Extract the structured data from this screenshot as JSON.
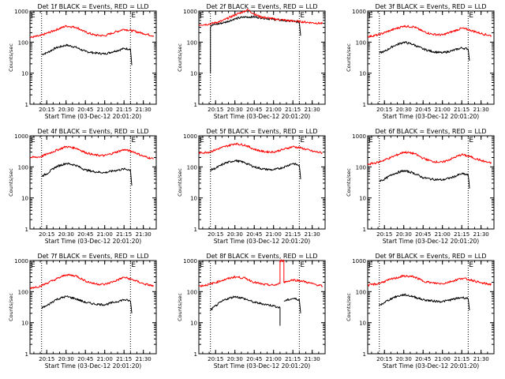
{
  "colors": {
    "events": "#000000",
    "lld": "#ff0000",
    "axis": "#000000",
    "background": "#ffffff"
  },
  "chart_data": [
    {
      "type": "line",
      "title": "Det 1f BLACK = Events, RED = LLD",
      "xlabel": "Start Time (03-Dec-12 20:01:20)",
      "ylabel": "Counts/sec",
      "yscale": "log",
      "ylim": [
        1,
        1000
      ],
      "xlim": [
        "20:02",
        "21:40"
      ],
      "xticks": [
        "20:15",
        "20:30",
        "20:45",
        "21:00",
        "21:15",
        "21:30"
      ],
      "yticks": [
        "1",
        "10",
        "100",
        "1000"
      ],
      "markers": [
        {
          "time": "20:11",
          "label": ""
        },
        {
          "time": "21:20",
          "label": "E"
        }
      ],
      "series": [
        {
          "name": "Events",
          "color": "#000000",
          "x": [
            "20:11",
            "20:15",
            "20:22",
            "20:30",
            "20:37",
            "20:45",
            "20:52",
            "21:00",
            "21:07",
            "21:15",
            "21:20",
            "21:21"
          ],
          "y": [
            40,
            45,
            65,
            80,
            70,
            50,
            45,
            42,
            50,
            62,
            60,
            18
          ]
        },
        {
          "name": "LLD",
          "color": "#ff0000",
          "x": [
            "20:02",
            "20:10",
            "20:20",
            "20:30",
            "20:38",
            "20:45",
            "20:52",
            "21:00",
            "21:08",
            "21:15",
            "21:22",
            "21:30",
            "21:38"
          ],
          "y": [
            140,
            160,
            230,
            330,
            300,
            210,
            170,
            160,
            210,
            260,
            230,
            190,
            160
          ]
        }
      ]
    },
    {
      "type": "line",
      "title": "Det 2f BLACK = Events, RED = LLD",
      "xlabel": "Start Time (03-Dec-12 20:01:20)",
      "ylabel": "Counts/sec",
      "yscale": "log",
      "ylim": [
        1,
        1000
      ],
      "xlim": [
        "20:02",
        "21:40"
      ],
      "xticks": [
        "20:15",
        "20:30",
        "20:45",
        "21:00",
        "21:15",
        "21:30"
      ],
      "yticks": [
        "1",
        "10",
        "100",
        "1000"
      ],
      "markers": [
        {
          "time": "20:11",
          "label": ""
        },
        {
          "time": "21:20",
          "label": "E"
        }
      ],
      "series": [
        {
          "name": "Events",
          "color": "#000000",
          "x": [
            "20:11",
            "20:11",
            "20:12",
            "20:15",
            "20:22",
            "20:30",
            "20:37",
            "20:45",
            "20:52",
            "21:00",
            "21:07",
            "21:15",
            "21:20",
            "21:21"
          ],
          "y": [
            10,
            300,
            350,
            370,
            430,
            560,
            640,
            650,
            600,
            540,
            500,
            470,
            440,
            160
          ]
        },
        {
          "name": "LLD",
          "color": "#ff0000",
          "x": [
            "20:02",
            "20:10",
            "20:20",
            "20:30",
            "20:35",
            "20:40",
            "20:45",
            "20:50",
            "21:00",
            "21:10",
            "21:20",
            "21:30",
            "21:38"
          ],
          "y": [
            360,
            380,
            480,
            750,
            900,
            1100,
            800,
            650,
            560,
            500,
            460,
            420,
            400
          ]
        }
      ]
    },
    {
      "type": "line",
      "title": "Det 3f BLACK = Events, RED = LLD",
      "xlabel": "Start Time (03-Dec-12 20:01:20)",
      "ylabel": "Counts/sec",
      "yscale": "log",
      "ylim": [
        1,
        1000
      ],
      "xlim": [
        "20:02",
        "21:40"
      ],
      "xticks": [
        "20:15",
        "20:30",
        "20:45",
        "21:00",
        "21:15",
        "21:30"
      ],
      "yticks": [
        "1",
        "10",
        "100",
        "1000"
      ],
      "markers": [
        {
          "time": "20:11",
          "label": ""
        },
        {
          "time": "21:20",
          "label": "E"
        }
      ],
      "series": [
        {
          "name": "Events",
          "color": "#000000",
          "x": [
            "20:11",
            "20:15",
            "20:22",
            "20:30",
            "20:37",
            "20:45",
            "20:52",
            "21:00",
            "21:07",
            "21:15",
            "21:20",
            "21:21"
          ],
          "y": [
            45,
            50,
            75,
            100,
            85,
            60,
            50,
            45,
            52,
            65,
            60,
            25
          ]
        },
        {
          "name": "LLD",
          "color": "#ff0000",
          "x": [
            "20:02",
            "20:10",
            "20:20",
            "20:30",
            "20:38",
            "20:45",
            "20:52",
            "21:00",
            "21:08",
            "21:15",
            "21:22",
            "21:30",
            "21:38"
          ],
          "y": [
            150,
            170,
            240,
            330,
            310,
            220,
            180,
            170,
            220,
            280,
            240,
            190,
            160
          ]
        }
      ]
    },
    {
      "type": "line",
      "title": "Det 4f BLACK = Events, RED = LLD",
      "xlabel": "Start Time (03-Dec-12 20:01:20)",
      "ylabel": "Counts/sec",
      "yscale": "log",
      "ylim": [
        1,
        1000
      ],
      "xlim": [
        "20:02",
        "21:40"
      ],
      "xticks": [
        "20:15",
        "20:30",
        "20:45",
        "21:00",
        "21:15",
        "21:30"
      ],
      "yticks": [
        "1",
        "10",
        "100",
        "1000"
      ],
      "markers": [
        {
          "time": "20:11",
          "label": ""
        },
        {
          "time": "21:20",
          "label": "E"
        }
      ],
      "series": [
        {
          "name": "Events",
          "color": "#000000",
          "x": [
            "20:11",
            "20:15",
            "20:22",
            "20:30",
            "20:37",
            "20:45",
            "20:52",
            "21:00",
            "21:07",
            "21:15",
            "21:20",
            "21:21"
          ],
          "y": [
            50,
            60,
            100,
            130,
            115,
            80,
            70,
            65,
            75,
            85,
            80,
            25
          ]
        },
        {
          "name": "LLD",
          "color": "#ff0000",
          "x": [
            "20:02",
            "20:10",
            "20:20",
            "20:30",
            "20:38",
            "20:45",
            "20:52",
            "21:00",
            "21:08",
            "21:15",
            "21:22",
            "21:30",
            "21:38"
          ],
          "y": [
            200,
            210,
            310,
            450,
            400,
            290,
            240,
            230,
            290,
            360,
            310,
            220,
            180
          ]
        }
      ]
    },
    {
      "type": "line",
      "title": "Det 5f BLACK = Events, RED = LLD",
      "xlabel": "Start Time (03-Dec-12 20:01:20)",
      "ylabel": "Counts/sec",
      "yscale": "log",
      "ylim": [
        1,
        1000
      ],
      "xlim": [
        "20:02",
        "21:40"
      ],
      "xticks": [
        "20:15",
        "20:30",
        "20:45",
        "21:00",
        "21:15",
        "21:30"
      ],
      "yticks": [
        "1",
        "10",
        "100",
        "1000"
      ],
      "markers": [
        {
          "time": "20:11",
          "label": ""
        },
        {
          "time": "21:20",
          "label": "E"
        }
      ],
      "series": [
        {
          "name": "Events",
          "color": "#000000",
          "x": [
            "20:11",
            "20:15",
            "20:22",
            "20:30",
            "20:37",
            "20:45",
            "20:52",
            "21:00",
            "21:07",
            "21:15",
            "21:20",
            "21:21"
          ],
          "y": [
            80,
            90,
            130,
            160,
            140,
            100,
            85,
            80,
            95,
            130,
            110,
            40
          ]
        },
        {
          "name": "LLD",
          "color": "#ff0000",
          "x": [
            "20:02",
            "20:10",
            "20:20",
            "20:30",
            "20:38",
            "20:45",
            "20:52",
            "21:00",
            "21:08",
            "21:15",
            "21:22",
            "21:30",
            "21:38"
          ],
          "y": [
            280,
            300,
            420,
            560,
            500,
            370,
            310,
            300,
            370,
            450,
            400,
            320,
            280
          ]
        }
      ]
    },
    {
      "type": "line",
      "title": "Det 6f BLACK = Events, RED = LLD",
      "xlabel": "Start Time (03-Dec-12 20:01:20)",
      "ylabel": "Counts/sec",
      "yscale": "log",
      "ylim": [
        1,
        1000
      ],
      "xlim": [
        "20:02",
        "21:40"
      ],
      "xticks": [
        "20:15",
        "20:30",
        "20:45",
        "21:00",
        "21:15",
        "21:30"
      ],
      "yticks": [
        "1",
        "10",
        "100",
        "1000"
      ],
      "markers": [
        {
          "time": "20:11",
          "label": ""
        },
        {
          "time": "21:20",
          "label": "E"
        }
      ],
      "series": [
        {
          "name": "Events",
          "color": "#000000",
          "x": [
            "20:11",
            "20:15",
            "20:22",
            "20:30",
            "20:37",
            "20:45",
            "20:52",
            "21:00",
            "21:07",
            "21:15",
            "21:20",
            "21:21"
          ],
          "y": [
            35,
            40,
            60,
            75,
            65,
            45,
            40,
            38,
            45,
            60,
            55,
            20
          ]
        },
        {
          "name": "LLD",
          "color": "#ff0000",
          "x": [
            "20:02",
            "20:10",
            "20:20",
            "20:30",
            "20:38",
            "20:45",
            "20:52",
            "21:00",
            "21:08",
            "21:15",
            "21:22",
            "21:30",
            "21:38"
          ],
          "y": [
            120,
            140,
            200,
            300,
            270,
            190,
            150,
            140,
            190,
            250,
            210,
            160,
            130
          ]
        }
      ]
    },
    {
      "type": "line",
      "title": "Det 7f BLACK = Events, RED = LLD",
      "xlabel": "Start Time (03-Dec-12 20:01:20)",
      "ylabel": "Counts/sec",
      "yscale": "log",
      "ylim": [
        1,
        1000
      ],
      "xlim": [
        "20:02",
        "21:40"
      ],
      "xticks": [
        "20:15",
        "20:30",
        "20:45",
        "21:00",
        "21:15",
        "21:30"
      ],
      "yticks": [
        "1",
        "10",
        "100",
        "1000"
      ],
      "markers": [
        {
          "time": "20:11",
          "label": ""
        },
        {
          "time": "21:20",
          "label": "E"
        }
      ],
      "series": [
        {
          "name": "Events",
          "color": "#000000",
          "x": [
            "20:11",
            "20:15",
            "20:22",
            "20:30",
            "20:37",
            "20:45",
            "20:52",
            "21:00",
            "21:07",
            "21:15",
            "21:20",
            "21:21"
          ],
          "y": [
            30,
            35,
            55,
            70,
            60,
            45,
            40,
            38,
            45,
            55,
            50,
            20
          ]
        },
        {
          "name": "LLD",
          "color": "#ff0000",
          "x": [
            "20:02",
            "20:10",
            "20:20",
            "20:30",
            "20:38",
            "20:45",
            "20:52",
            "21:00",
            "21:08",
            "21:15",
            "21:22",
            "21:30",
            "21:38"
          ],
          "y": [
            130,
            150,
            230,
            350,
            320,
            220,
            180,
            170,
            220,
            290,
            240,
            180,
            150
          ]
        }
      ]
    },
    {
      "type": "line",
      "title": "Det 8f BLACK = Events, RED = LLD",
      "xlabel": "Start Time (03-Dec-12 20:01:20)",
      "ylabel": "Counts/sec",
      "yscale": "log",
      "ylim": [
        1,
        1000
      ],
      "xlim": [
        "20:02",
        "21:40"
      ],
      "xticks": [
        "20:15",
        "20:30",
        "20:45",
        "21:00",
        "21:15",
        "21:30"
      ],
      "yticks": [
        "1",
        "10",
        "100",
        "1000"
      ],
      "markers": [
        {
          "time": "20:11",
          "label": ""
        },
        {
          "time": "21:20",
          "label": "E"
        }
      ],
      "series": [
        {
          "name": "Events",
          "color": "#000000",
          "x": [
            "20:11",
            "20:15",
            "20:22",
            "20:30",
            "20:37",
            "20:45",
            "20:52",
            "21:00",
            "21:05",
            "21:05",
            "21:08",
            "21:08",
            "21:15",
            "21:20",
            "21:21"
          ],
          "y": [
            25,
            35,
            55,
            70,
            60,
            45,
            40,
            35,
            30,
            8,
            null,
            50,
            60,
            55,
            20
          ]
        },
        {
          "name": "LLD",
          "color": "#ff0000",
          "x": [
            "20:02",
            "20:10",
            "20:20",
            "20:30",
            "20:38",
            "20:45",
            "20:52",
            "21:00",
            "21:05",
            "21:05",
            "21:08",
            "21:08",
            "21:15",
            "21:22",
            "21:30",
            "21:38"
          ],
          "y": [
            150,
            170,
            230,
            300,
            270,
            200,
            170,
            160,
            180,
            1000,
            1000,
            200,
            240,
            220,
            180,
            150
          ]
        }
      ]
    },
    {
      "type": "line",
      "title": "Det 9f BLACK = Events, RED = LLD",
      "xlabel": "Start Time (03-Dec-12 20:01:20)",
      "ylabel": "Counts/sec",
      "yscale": "log",
      "ylim": [
        1,
        1000
      ],
      "xlim": [
        "20:02",
        "21:40"
      ],
      "xticks": [
        "20:15",
        "20:30",
        "20:45",
        "21:00",
        "21:15",
        "21:30"
      ],
      "yticks": [
        "1",
        "10",
        "100",
        "1000"
      ],
      "markers": [
        {
          "time": "20:11",
          "label": ""
        },
        {
          "time": "21:20",
          "label": "E"
        }
      ],
      "series": [
        {
          "name": "Events",
          "color": "#000000",
          "x": [
            "20:11",
            "20:15",
            "20:22",
            "20:30",
            "20:37",
            "20:45",
            "20:52",
            "21:00",
            "21:07",
            "21:15",
            "21:20",
            "21:21"
          ],
          "y": [
            35,
            45,
            65,
            80,
            70,
            55,
            50,
            48,
            55,
            65,
            60,
            25
          ]
        },
        {
          "name": "LLD",
          "color": "#ff0000",
          "x": [
            "20:02",
            "20:10",
            "20:20",
            "20:30",
            "20:38",
            "20:45",
            "20:52",
            "21:00",
            "21:08",
            "21:15",
            "21:22",
            "21:30",
            "21:38"
          ],
          "y": [
            160,
            180,
            250,
            320,
            300,
            220,
            190,
            180,
            220,
            270,
            240,
            190,
            170
          ]
        }
      ]
    }
  ]
}
